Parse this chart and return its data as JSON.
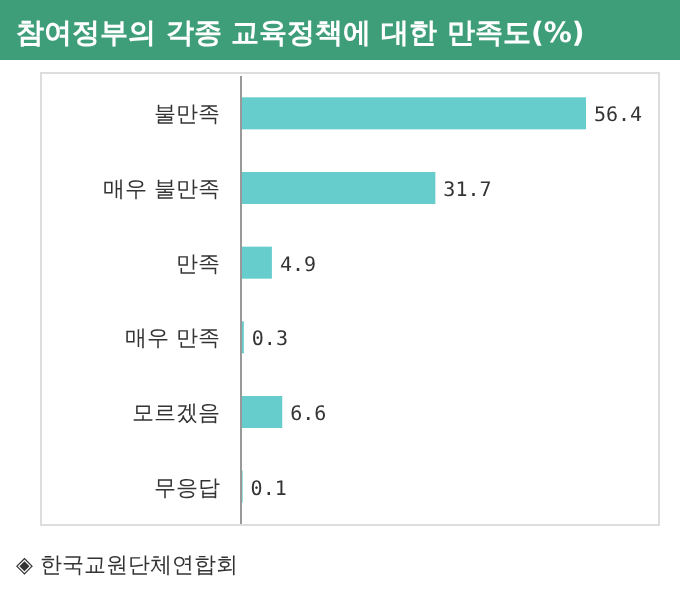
{
  "chart_data": {
    "type": "bar",
    "orientation": "horizontal",
    "title": "참여정부의 각종 교육정책에 대한 만족도(%)",
    "categories": [
      "불만족",
      "매우 불만족",
      "만족",
      "매우 만족",
      "모르겠음",
      "무응답"
    ],
    "values": [
      56.4,
      31.7,
      4.9,
      0.3,
      6.6,
      0.1
    ],
    "color": "#66cccc",
    "data_labels": true,
    "annotations": [
      "◈ 한국교원단체연합회"
    ]
  }
}
